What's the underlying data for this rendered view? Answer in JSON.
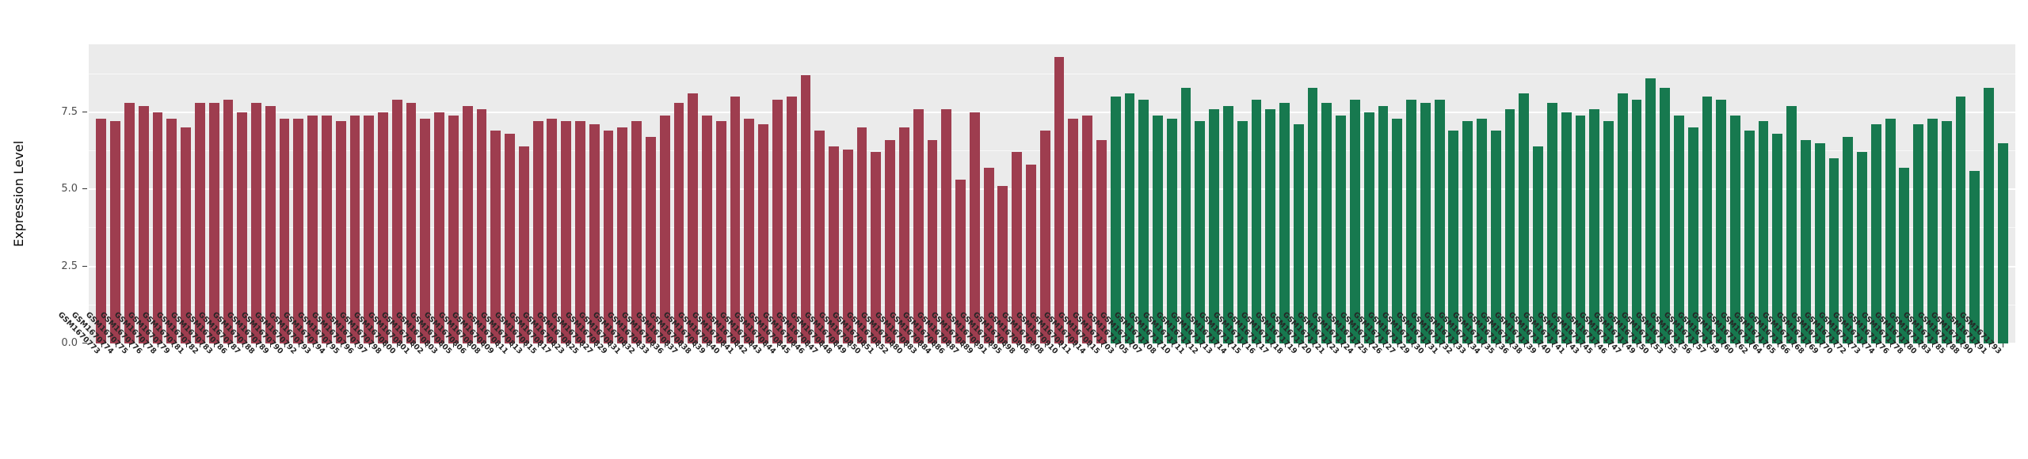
{
  "figure": {
    "y_axis_title": "Expression Level"
  },
  "chart_data": {
    "type": "bar",
    "title": "",
    "xlabel": "",
    "ylabel": "Expression Level",
    "ymax": 9.7,
    "yticks": [
      0,
      2.5,
      5,
      7.5
    ],
    "ytick_labels": [
      "0.0",
      "2.5",
      "5.0",
      "7.5"
    ],
    "minor_gridlines": [
      1.25,
      3.75,
      6.25,
      8.75
    ],
    "panel_bg": "#EBEBEB",
    "grid_color": "#FFFFFF",
    "legend": "none",
    "groups": [
      {
        "name": "group-1",
        "color": "#9E3D4F",
        "labels": [
          "GSM1670773",
          "GSM1670774",
          "GSM1670775",
          "GSM1670776",
          "GSM1670778",
          "GSM1670779",
          "GSM1670781",
          "GSM1670782",
          "GSM1670783",
          "GSM1670786",
          "GSM1670787",
          "GSM1670788",
          "GSM1670789",
          "GSM1670790",
          "GSM1670792",
          "GSM1670793",
          "GSM1670794",
          "GSM1670795",
          "GSM1670796",
          "GSM1670797",
          "GSM1670798",
          "GSM1670800",
          "GSM1670801",
          "GSM1670802",
          "GSM1670803",
          "GSM1670805",
          "GSM1670806",
          "GSM1670808",
          "GSM1670809",
          "GSM1670811",
          "GSM1670813",
          "GSM1670815",
          "GSM1670817",
          "GSM1670823",
          "GSM1670825",
          "GSM1670827",
          "GSM1670829",
          "GSM1670831",
          "GSM1670832",
          "GSM1670833",
          "GSM1670836",
          "GSM1670837",
          "GSM1670838",
          "GSM1670839",
          "GSM1670840",
          "GSM1670841",
          "GSM1670842",
          "GSM1670843",
          "GSM1670844",
          "GSM1670845",
          "GSM1670846",
          "GSM1670847",
          "GSM1670848",
          "GSM1670849",
          "GSM1670850",
          "GSM1670851",
          "GSM1670852",
          "GSM1670880",
          "GSM1670883",
          "GSM1670884",
          "GSM1670886",
          "GSM1670887",
          "GSM1670889",
          "GSM1670891",
          "GSM1670895",
          "GSM1670898",
          "GSM1670906",
          "GSM1670908",
          "GSM1670910",
          "GSM1670911",
          "GSM1670914",
          "GSM1670915"
        ],
        "values": [
          7.3,
          7.2,
          7.8,
          7.7,
          7.5,
          7.3,
          7.0,
          7.8,
          7.8,
          7.9,
          7.5,
          7.8,
          7.7,
          7.3,
          7.3,
          7.4,
          7.4,
          7.2,
          7.4,
          7.4,
          7.5,
          7.9,
          7.8,
          7.3,
          7.5,
          7.4,
          7.7,
          7.6,
          6.9,
          6.8,
          6.4,
          7.2,
          7.3,
          7.2,
          7.2,
          7.1,
          6.9,
          7.0,
          7.2,
          6.7,
          7.4,
          7.8,
          8.1,
          7.4,
          7.2,
          8.0,
          7.3,
          7.1,
          7.9,
          8.0,
          8.7,
          6.9,
          6.4,
          6.3,
          7.0,
          6.2,
          6.6,
          7.0,
          7.6,
          6.6,
          7.6,
          5.3,
          7.5,
          5.7,
          5.1,
          6.2,
          5.8,
          6.9,
          9.3,
          7.3,
          7.4,
          6.6
        ]
      },
      {
        "name": "group-2",
        "color": "#17794F",
        "labels": [
          "GSM1671703",
          "GSM1671705",
          "GSM1671707",
          "GSM1671708",
          "GSM1671710",
          "GSM1671711",
          "GSM1671712",
          "GSM1671713",
          "GSM1671714",
          "GSM1671715",
          "GSM1671716",
          "GSM1671717",
          "GSM1671718",
          "GSM1671719",
          "GSM1671720",
          "GSM1671721",
          "GSM1671723",
          "GSM1671724",
          "GSM1671725",
          "GSM1671726",
          "GSM1671727",
          "GSM1671729",
          "GSM1671730",
          "GSM1671731",
          "GSM1671732",
          "GSM1671733",
          "GSM1671734",
          "GSM1671735",
          "GSM1671736",
          "GSM1671738",
          "GSM1671739",
          "GSM1671740",
          "GSM1671741",
          "GSM1671743",
          "GSM1671745",
          "GSM1671746",
          "GSM1671747",
          "GSM1671749",
          "GSM1671750",
          "GSM1671753",
          "GSM1671755",
          "GSM1671756",
          "GSM1671757",
          "GSM1671759",
          "GSM1671760",
          "GSM1671762",
          "GSM1671764",
          "GSM1671765",
          "GSM1671766",
          "GSM1671768",
          "GSM1671769",
          "GSM1671770",
          "GSM1671772",
          "GSM1671773",
          "GSM1671774",
          "GSM1671776",
          "GSM1671778",
          "GSM1671780",
          "GSM1671783",
          "GSM1671785",
          "GSM1671788",
          "GSM1671790",
          "GSM1671791",
          "GSM1671793"
        ],
        "values": [
          8.0,
          8.1,
          7.9,
          7.4,
          7.3,
          8.3,
          7.2,
          7.6,
          7.7,
          7.2,
          7.9,
          7.6,
          7.8,
          7.1,
          8.3,
          7.8,
          7.4,
          7.9,
          7.5,
          7.7,
          7.3,
          7.9,
          7.8,
          7.9,
          6.9,
          7.2,
          7.3,
          6.9,
          7.6,
          8.1,
          6.4,
          7.8,
          7.5,
          7.4,
          7.6,
          7.2,
          8.1,
          7.9,
          8.6,
          8.3,
          7.4,
          7.0,
          8.0,
          7.9,
          7.4,
          6.9,
          7.2,
          6.8,
          7.7,
          6.6,
          6.5,
          6.0,
          6.7,
          6.2,
          7.1,
          7.3,
          5.7,
          7.1,
          7.3,
          7.2,
          8.0,
          5.6,
          8.3,
          6.5
        ]
      }
    ]
  }
}
